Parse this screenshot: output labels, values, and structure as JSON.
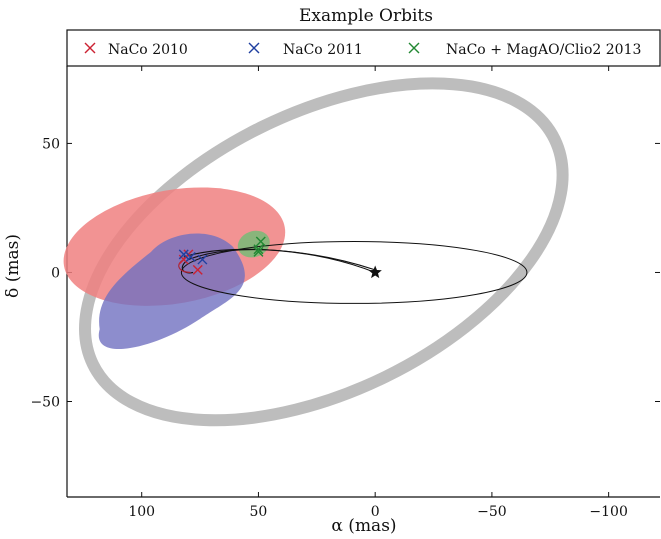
{
  "chart_data": {
    "type": "scatter",
    "title": "Example Orbits",
    "xlabel": "α (mas)",
    "ylabel": "δ (mas)",
    "xlim": [
      132,
      -122
    ],
    "ylim": [
      -87,
      80
    ],
    "x_ticks": [
      100,
      50,
      0,
      -50,
      -100
    ],
    "x_tick_labels": [
      "100",
      "50",
      "0",
      "−50",
      "−100"
    ],
    "y_ticks": [
      50,
      0,
      -50
    ],
    "y_tick_labels": [
      "50",
      "0",
      "−50"
    ],
    "legend_position": "top, spanning full width",
    "series": [
      {
        "name": "NaCo 2010",
        "color": "#cc2233",
        "marker": "x",
        "x": [
          80,
          82,
          76
        ],
        "y": [
          7,
          5,
          1
        ]
      },
      {
        "name": "NaCo 2011",
        "color": "#1f3fa0",
        "marker": "x",
        "x": [
          82,
          79,
          74
        ],
        "y": [
          7,
          6,
          5
        ]
      },
      {
        "name": "NaCo + MagAO/Clio2 2013",
        "color": "#228833",
        "marker": "x",
        "x": [
          49,
          50,
          50
        ],
        "y": [
          12,
          9,
          8
        ]
      }
    ],
    "uncertainty_regions": [
      {
        "series": "NaCo 2010",
        "color": "#f08080"
      },
      {
        "series": "NaCo 2011",
        "color": "#7070c0"
      },
      {
        "series": "NaCo + MagAO/Clio2 2013",
        "color": "#77bb77"
      }
    ],
    "orbits": [
      {
        "description": "wide",
        "color": "#bdbdbd",
        "center": [
          22,
          8
        ],
        "semi_axes": [
          110,
          54
        ],
        "angle_deg": 26
      },
      {
        "description": "narrow",
        "color": "#111111",
        "center": [
          9,
          0
        ],
        "semi_axes": [
          74,
          12
        ],
        "angle_deg": 0
      }
    ],
    "star": {
      "x": 0,
      "y": 0,
      "marker": "star"
    }
  }
}
